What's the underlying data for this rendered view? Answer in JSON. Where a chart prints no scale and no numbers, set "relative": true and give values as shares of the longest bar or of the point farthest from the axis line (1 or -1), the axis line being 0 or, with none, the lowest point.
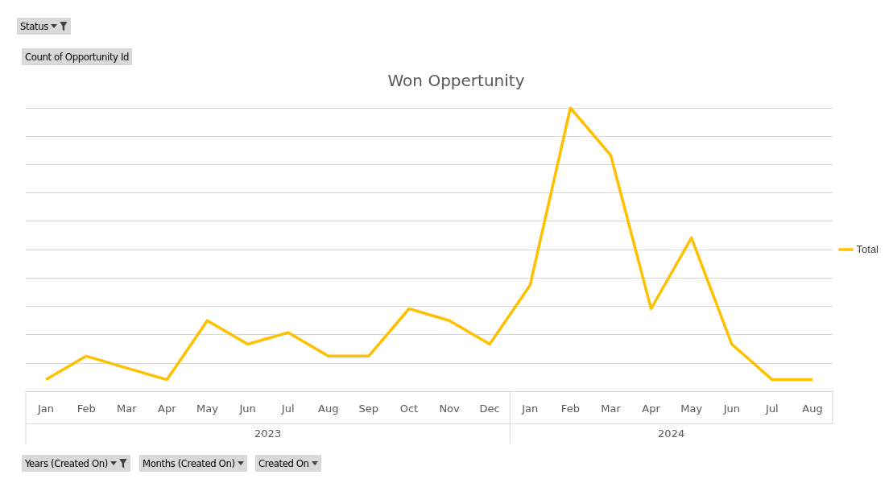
{
  "chart_data": {
    "type": "line",
    "title": "Won Oppertunity",
    "relative": true,
    "grid": "y",
    "legend": "right",
    "marker": "none",
    "line_style": "solid",
    "categories": [
      "Jan",
      "Feb",
      "Mar",
      "Apr",
      "May",
      "Jun",
      "Jul",
      "Aug",
      "Sep",
      "Oct",
      "Nov",
      "Dec",
      "Jan",
      "Feb",
      "Mar",
      "Apr",
      "May",
      "Jun",
      "Jul",
      "Aug"
    ],
    "series": [
      {
        "name": "Total",
        "color": "#ffc000",
        "values": [
          0.042,
          0.125,
          0.083,
          0.042,
          0.25,
          0.167,
          0.208,
          0.125,
          0.125,
          0.292,
          0.25,
          0.167,
          0.375,
          1,
          0.833,
          0.292,
          0.542,
          0.167,
          0.042,
          0.042
        ]
      }
    ],
    "annotations": [
      "Status",
      "Count of Opportunity Id",
      "Years (Created On)",
      "Months (Created On)",
      "Created On",
      "2023",
      "2024"
    ]
  }
}
